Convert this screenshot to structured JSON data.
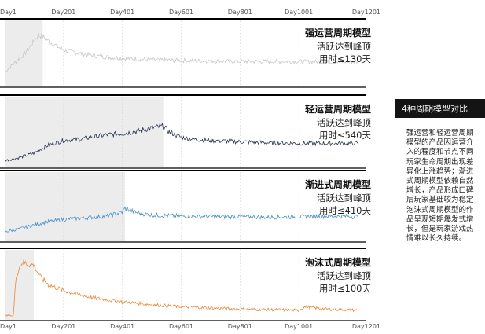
{
  "chart_data": [
    {
      "type": "line",
      "x_ticks": [
        "Day1",
        "Day201",
        "Day401",
        "Day601",
        "Day801",
        "Day1001",
        "Day1201"
      ],
      "xlim": [
        1,
        1201
      ],
      "title": "强运营周期模型",
      "subtitle_lines": [
        "活跃达到峰顶",
        "用时≤130天"
      ],
      "peak_day": 130,
      "color": "#c8c8c8",
      "shade_until_day": 130,
      "series": [
        {
          "x": [
            1,
            20,
            40,
            60,
            80,
            100,
            115,
            130,
            160,
            200,
            260,
            320,
            400,
            500,
            600,
            700,
            800,
            900,
            1000,
            1100,
            1201
          ],
          "y": [
            0.2,
            0.3,
            0.4,
            0.5,
            0.62,
            0.78,
            0.9,
            0.88,
            0.75,
            0.62,
            0.55,
            0.5,
            0.46,
            0.43,
            0.42,
            0.41,
            0.4,
            0.4,
            0.4,
            0.39,
            0.39
          ]
        }
      ]
    },
    {
      "type": "line",
      "x_ticks": [],
      "xlim": [
        1,
        1201
      ],
      "title": "轻运营周期模型",
      "subtitle_lines": [
        "活跃达到峰顶",
        "用时≤540天"
      ],
      "peak_day": 540,
      "color": "#2a3550",
      "shade_until_day": 540,
      "series": [
        {
          "x": [
            1,
            50,
            100,
            150,
            200,
            250,
            300,
            350,
            400,
            450,
            500,
            540,
            560,
            600,
            650,
            700,
            750,
            800,
            900,
            1000,
            1100,
            1201
          ],
          "y": [
            0.05,
            0.1,
            0.18,
            0.32,
            0.4,
            0.42,
            0.46,
            0.5,
            0.52,
            0.56,
            0.62,
            0.65,
            0.55,
            0.46,
            0.42,
            0.4,
            0.39,
            0.38,
            0.36,
            0.35,
            0.35,
            0.35
          ]
        }
      ]
    },
    {
      "type": "line",
      "x_ticks": [],
      "xlim": [
        1,
        1201
      ],
      "title": "渐进式周期模型",
      "subtitle_lines": [
        "活跃达到峰顶",
        "用时≤410天"
      ],
      "peak_day": 410,
      "color": "#4a90c8",
      "shade_until_day": 410,
      "series": [
        {
          "x": [
            1,
            50,
            100,
            150,
            200,
            250,
            300,
            350,
            400,
            410,
            450,
            500,
            600,
            700,
            800,
            900,
            1000,
            1100,
            1201
          ],
          "y": [
            0.1,
            0.15,
            0.22,
            0.28,
            0.32,
            0.34,
            0.36,
            0.38,
            0.45,
            0.52,
            0.44,
            0.4,
            0.38,
            0.37,
            0.37,
            0.36,
            0.37,
            0.38,
            0.37
          ]
        }
      ]
    },
    {
      "type": "line",
      "x_ticks": [
        "Day1",
        "Day201",
        "Day401",
        "Day601",
        "Day801",
        "Day1001",
        "Day1201"
      ],
      "xlim": [
        1,
        1201
      ],
      "title": "泡沫式周期模型",
      "subtitle_lines": [
        "活跃达到峰顶",
        "用时≤100天"
      ],
      "peak_day": 100,
      "color": "#e8893a",
      "shade_until_day": 100,
      "series": [
        {
          "x": [
            1,
            30,
            40,
            50,
            60,
            80,
            100,
            120,
            150,
            200,
            250,
            300,
            400,
            500,
            600,
            700,
            800,
            900,
            1000,
            1020,
            1050,
            1100,
            1150,
            1201
          ],
          "y": [
            0.0,
            0.0,
            0.7,
            0.85,
            0.95,
            0.92,
            0.9,
            0.7,
            0.55,
            0.45,
            0.38,
            0.32,
            0.25,
            0.2,
            0.16,
            0.14,
            0.12,
            0.11,
            0.1,
            0.16,
            0.14,
            0.12,
            0.11,
            0.1
          ]
        }
      ]
    }
  ],
  "side_panel": {
    "title": "4种周期模型对比",
    "description": "强运营和轻运营周期\n模型的产品因运营介\n入的程度和节点不同\n玩家生命周期出现差\n异化上涨趋势；渐进\n式周期模型依赖自然\n增长，产品形成口碑\n后玩家基础较为稳定\n泡沫式周期模型的作\n品呈现短期爆发式增\n长，但是玩家游戏热\n情难以长久持续。"
  }
}
